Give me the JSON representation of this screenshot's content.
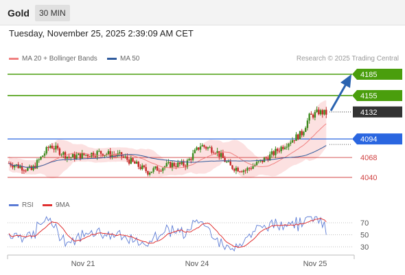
{
  "header": {
    "title": "Gold",
    "timeframe": "30 MIN"
  },
  "date_text": "Tuesday, November 25, 2025 2:39:09 AM CET",
  "legend": {
    "items": [
      {
        "label": "MA 20 + Bollinger Bands",
        "color": "#f08080"
      },
      {
        "label": "MA 50",
        "color": "#2f5b9d"
      }
    ],
    "credit": "Research © 2025 Trading Central"
  },
  "price_levels": [
    {
      "label": "4185",
      "value": 4185,
      "style": "green"
    },
    {
      "label": "4155",
      "value": 4155,
      "style": "green"
    },
    {
      "label": "4132",
      "value": 4132,
      "style": "current"
    },
    {
      "label": "4094",
      "value": 4094,
      "style": "blue"
    },
    {
      "label": "4068",
      "value": 4068,
      "style": "red"
    },
    {
      "label": "4040",
      "value": 4040,
      "style": "red"
    }
  ],
  "rsi": {
    "legend": [
      {
        "label": "RSI",
        "color": "#5b7bd5"
      },
      {
        "label": "9MA",
        "color": "#e03030"
      }
    ],
    "levels": [
      "70",
      "50",
      "30"
    ]
  },
  "x_axis": {
    "labels": [
      "Nov 21",
      "Nov 24",
      "Nov 25"
    ]
  },
  "colors": {
    "up": "#3c8a1e",
    "down": "#c62828",
    "green_level": "#4a9e0d",
    "blue_level": "#2a66e0",
    "red_level": "#d04040",
    "current": "#333333",
    "arrow": "#2a63b0"
  }
}
